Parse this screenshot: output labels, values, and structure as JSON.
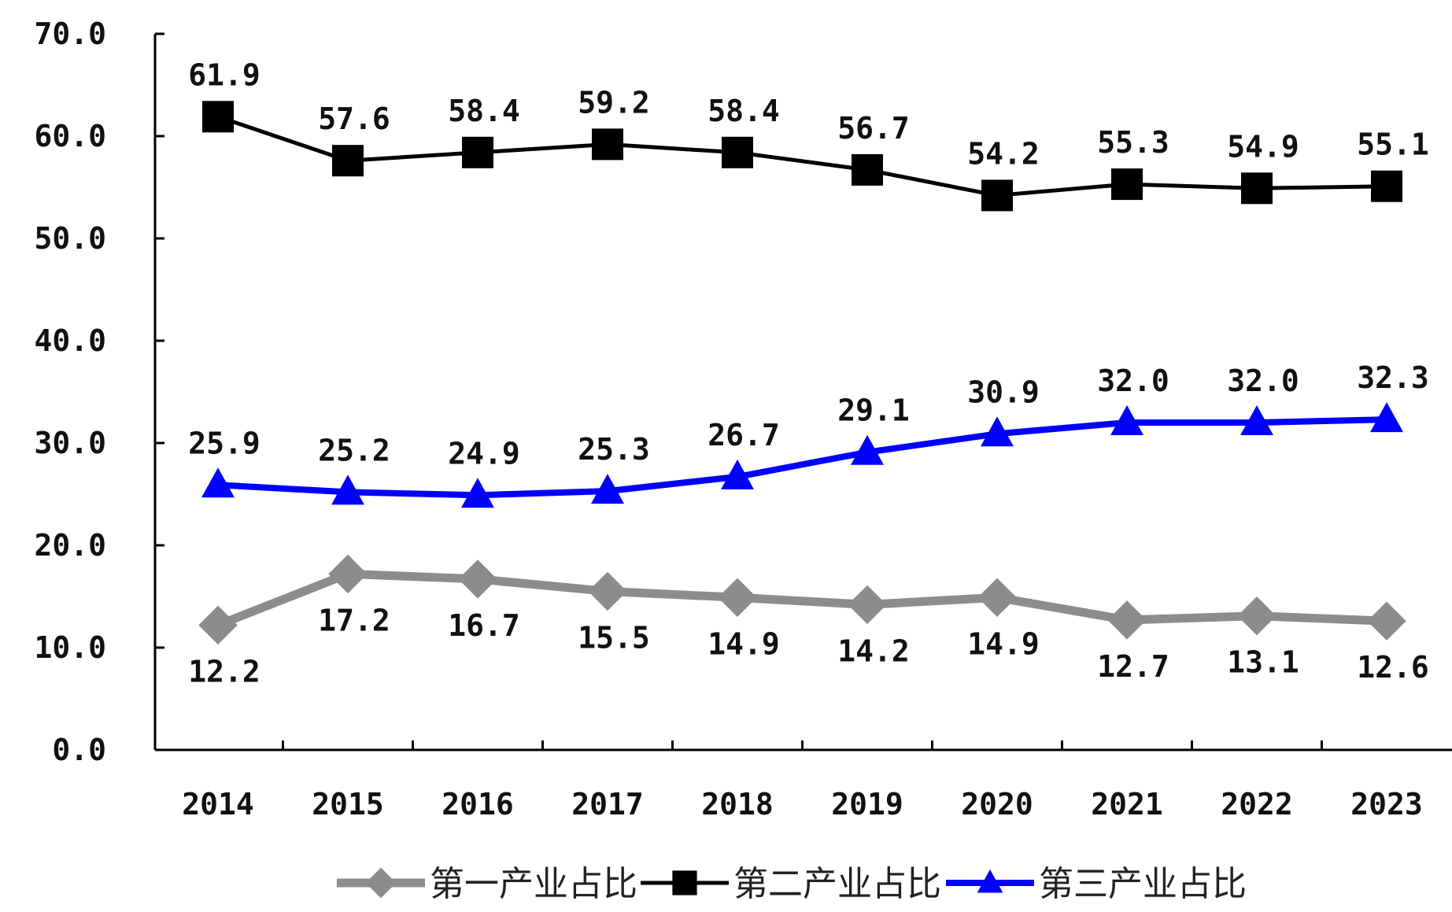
{
  "chart_data": {
    "type": "line",
    "title": "",
    "xlabel": "",
    "ylabel": "",
    "x": [
      "2014",
      "2015",
      "2016",
      "2017",
      "2018",
      "2019",
      "2020",
      "2021",
      "2022",
      "2023"
    ],
    "ylim": [
      0,
      70
    ],
    "yticks": [
      "0.0",
      "10.0",
      "20.0",
      "30.0",
      "40.0",
      "50.0",
      "60.0",
      "70.0"
    ],
    "grid": false,
    "legend_position": "bottom",
    "series": [
      {
        "name": "第一产业占比",
        "color": "#8c8c8c",
        "marker": "diamond",
        "label_position": "below",
        "values": [
          12.2,
          17.2,
          16.7,
          15.5,
          14.9,
          14.2,
          14.9,
          12.7,
          13.1,
          12.6
        ],
        "labels": [
          "12.2",
          "17.2",
          "16.7",
          "15.5",
          "14.9",
          "14.2",
          "14.9",
          "12.7",
          "13.1",
          "12.6"
        ]
      },
      {
        "name": "第二产业占比",
        "color": "#000000",
        "marker": "square",
        "label_position": "above",
        "values": [
          61.9,
          57.6,
          58.4,
          59.2,
          58.4,
          56.7,
          54.2,
          55.3,
          54.9,
          55.1
        ],
        "labels": [
          "61.9",
          "57.6",
          "58.4",
          "59.2",
          "58.4",
          "56.7",
          "54.2",
          "55.3",
          "54.9",
          "55.1"
        ]
      },
      {
        "name": "第三产业占比",
        "color": "#0000ff",
        "marker": "triangle",
        "label_position": "above",
        "values": [
          25.9,
          25.2,
          24.9,
          25.3,
          26.7,
          29.1,
          30.9,
          32.0,
          32.0,
          32.3
        ],
        "labels": [
          "25.9",
          "25.2",
          "24.9",
          "25.3",
          "26.7",
          "29.1",
          "30.9",
          "32.0",
          "32.0",
          "32.3"
        ]
      }
    ]
  }
}
